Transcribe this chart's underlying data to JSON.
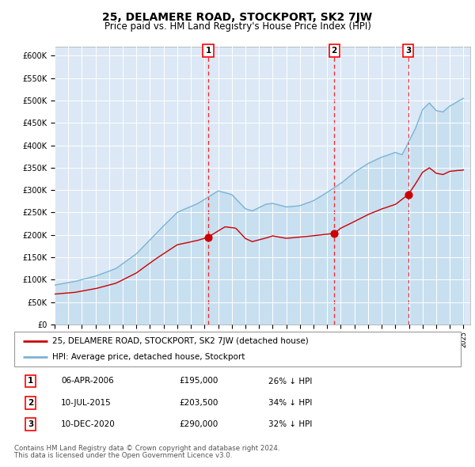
{
  "title": "25, DELAMERE ROAD, STOCKPORT, SK2 7JW",
  "subtitle": "Price paid vs. HM Land Registry's House Price Index (HPI)",
  "title_fontsize": 10,
  "subtitle_fontsize": 8.5,
  "hpi_color": "#7ab3d4",
  "hpi_fill_color": "#c8dff0",
  "price_color": "#cc0000",
  "bg_color": "#ffffff",
  "plot_bg_color": "#dce8f5",
  "grid_color": "#ffffff",
  "ylim": [
    0,
    620000
  ],
  "yticks": [
    0,
    50000,
    100000,
    150000,
    200000,
    250000,
    300000,
    350000,
    400000,
    450000,
    500000,
    550000,
    600000
  ],
  "ytick_labels": [
    "£0",
    "£50K",
    "£100K",
    "£150K",
    "£200K",
    "£250K",
    "£300K",
    "£350K",
    "£400K",
    "£450K",
    "£500K",
    "£550K",
    "£600K"
  ],
  "sale1_date": "06-APR-2006",
  "sale1_price": 195000,
  "sale1_pct": "26%",
  "sale2_date": "10-JUL-2015",
  "sale2_price": 203500,
  "sale2_pct": "34%",
  "sale3_date": "10-DEC-2020",
  "sale3_price": 290000,
  "sale3_pct": "32%",
  "sale1_x": 2006.27,
  "sale2_x": 2015.52,
  "sale3_x": 2020.95,
  "legend_label1": "25, DELAMERE ROAD, STOCKPORT, SK2 7JW (detached house)",
  "legend_label2": "HPI: Average price, detached house, Stockport",
  "footer1": "Contains HM Land Registry data © Crown copyright and database right 2024.",
  "footer2": "This data is licensed under the Open Government Licence v3.0."
}
